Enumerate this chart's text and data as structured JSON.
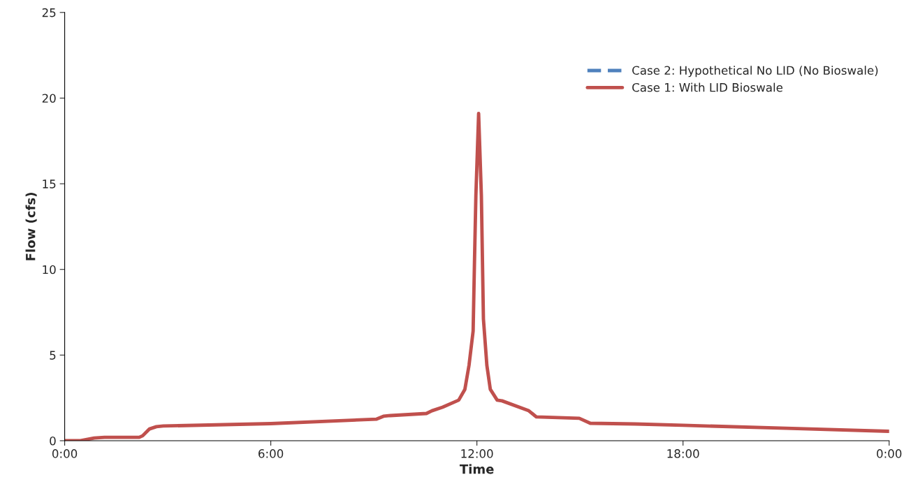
{
  "chart_data": {
    "type": "line",
    "xlabel": "Time",
    "ylabel": "Flow (cfs)",
    "x": [
      0,
      0.46,
      0.86,
      1.16,
      2.17,
      2.27,
      2.47,
      2.67,
      2.87,
      6,
      9.08,
      9.28,
      9.48,
      10.53,
      10.69,
      11.0,
      11.47,
      11.65,
      11.77,
      11.89,
      11.93,
      11.97,
      12.05,
      12.13,
      12.19,
      12.29,
      12.39,
      12.59,
      12.73,
      13.51,
      13.73,
      14.98,
      15.3,
      16.6,
      18,
      21,
      24
    ],
    "series": [
      {
        "name": "Case 2: Hypothetical No LID (No Bioswale)",
        "color": "#4f81bd",
        "line_style": "dashed",
        "values": [
          null,
          null,
          null,
          null,
          null,
          null,
          null,
          null,
          null,
          null,
          null,
          null,
          null,
          null,
          null,
          null,
          null,
          null,
          null,
          null,
          null,
          null,
          null,
          null,
          null,
          null,
          null,
          null,
          null,
          null,
          null,
          null,
          null,
          null,
          null,
          null,
          null
        ]
      },
      {
        "name": "Case 1: With LID Bioswale",
        "color": "#c0504d",
        "line_style": "solid",
        "values": [
          0,
          0,
          0.16,
          0.2,
          0.2,
          0.29,
          0.69,
          0.82,
          0.86,
          1.0,
          1.26,
          1.43,
          1.47,
          1.59,
          1.75,
          1.96,
          2.37,
          3.0,
          4.4,
          6.4,
          10.5,
          14.3,
          19.1,
          14.3,
          7.1,
          4.4,
          3.0,
          2.37,
          2.33,
          1.75,
          1.39,
          1.31,
          1.02,
          0.98,
          0.9,
          0.73,
          0.55
        ]
      }
    ],
    "xlim": [
      0,
      24
    ],
    "xticks": [
      {
        "value": 0,
        "label": "0:00"
      },
      {
        "value": 6,
        "label": "6:00"
      },
      {
        "value": 12,
        "label": "12:00"
      },
      {
        "value": 18,
        "label": "18:00"
      },
      {
        "value": 24,
        "label": "0:00"
      }
    ],
    "ylim": [
      0,
      25
    ],
    "yticks": [
      0,
      5,
      10,
      15,
      20,
      25
    ],
    "legend": "top right",
    "grid": false
  }
}
